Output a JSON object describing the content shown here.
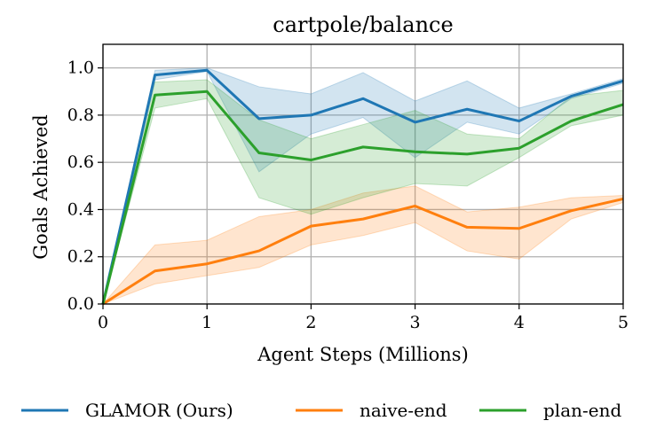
{
  "chart_data": {
    "type": "line",
    "title": "cartpole/balance",
    "xlabel": "Agent Steps (Millions)",
    "ylabel": "Goals Achieved",
    "xlim": [
      0,
      5
    ],
    "ylim": [
      0,
      1.1
    ],
    "xticks": [
      "0",
      "1",
      "2",
      "3",
      "4",
      "5"
    ],
    "yticks": [
      "0.0",
      "0.2",
      "0.4",
      "0.6",
      "0.8",
      "1.0"
    ],
    "grid": true,
    "legend_position": "bottom",
    "x": [
      0,
      0.5,
      1,
      1.5,
      2,
      2.5,
      3,
      3.5,
      4,
      4.5,
      5
    ],
    "series": [
      {
        "name": "GLAMOR (Ours)",
        "color": "#1f77b4",
        "values": [
          0.0,
          0.97,
          0.99,
          0.785,
          0.8,
          0.87,
          0.77,
          0.825,
          0.775,
          0.88,
          0.945
        ],
        "lower": [
          0.0,
          0.95,
          0.985,
          0.56,
          0.72,
          0.79,
          0.62,
          0.77,
          0.72,
          0.87,
          0.935
        ],
        "upper": [
          0.0,
          0.99,
          1.0,
          0.92,
          0.89,
          0.98,
          0.86,
          0.945,
          0.83,
          0.89,
          0.955
        ]
      },
      {
        "name": "naive-end",
        "color": "#ff7f0e",
        "values": [
          0.0,
          0.14,
          0.17,
          0.225,
          0.33,
          0.36,
          0.415,
          0.325,
          0.32,
          0.395,
          0.445
        ],
        "lower": [
          0.0,
          0.085,
          0.12,
          0.155,
          0.25,
          0.29,
          0.345,
          0.225,
          0.19,
          0.36,
          0.43
        ],
        "upper": [
          0.0,
          0.25,
          0.27,
          0.37,
          0.4,
          0.47,
          0.5,
          0.39,
          0.41,
          0.45,
          0.46
        ]
      },
      {
        "name": "plan-end",
        "color": "#2ca02c",
        "values": [
          0.0,
          0.885,
          0.9,
          0.64,
          0.61,
          0.665,
          0.645,
          0.635,
          0.66,
          0.775,
          0.845
        ],
        "lower": [
          0.0,
          0.83,
          0.87,
          0.45,
          0.38,
          0.45,
          0.51,
          0.5,
          0.62,
          0.755,
          0.8
        ],
        "upper": [
          0.0,
          0.94,
          0.95,
          0.78,
          0.7,
          0.76,
          0.82,
          0.72,
          0.7,
          0.88,
          0.905
        ]
      }
    ]
  }
}
